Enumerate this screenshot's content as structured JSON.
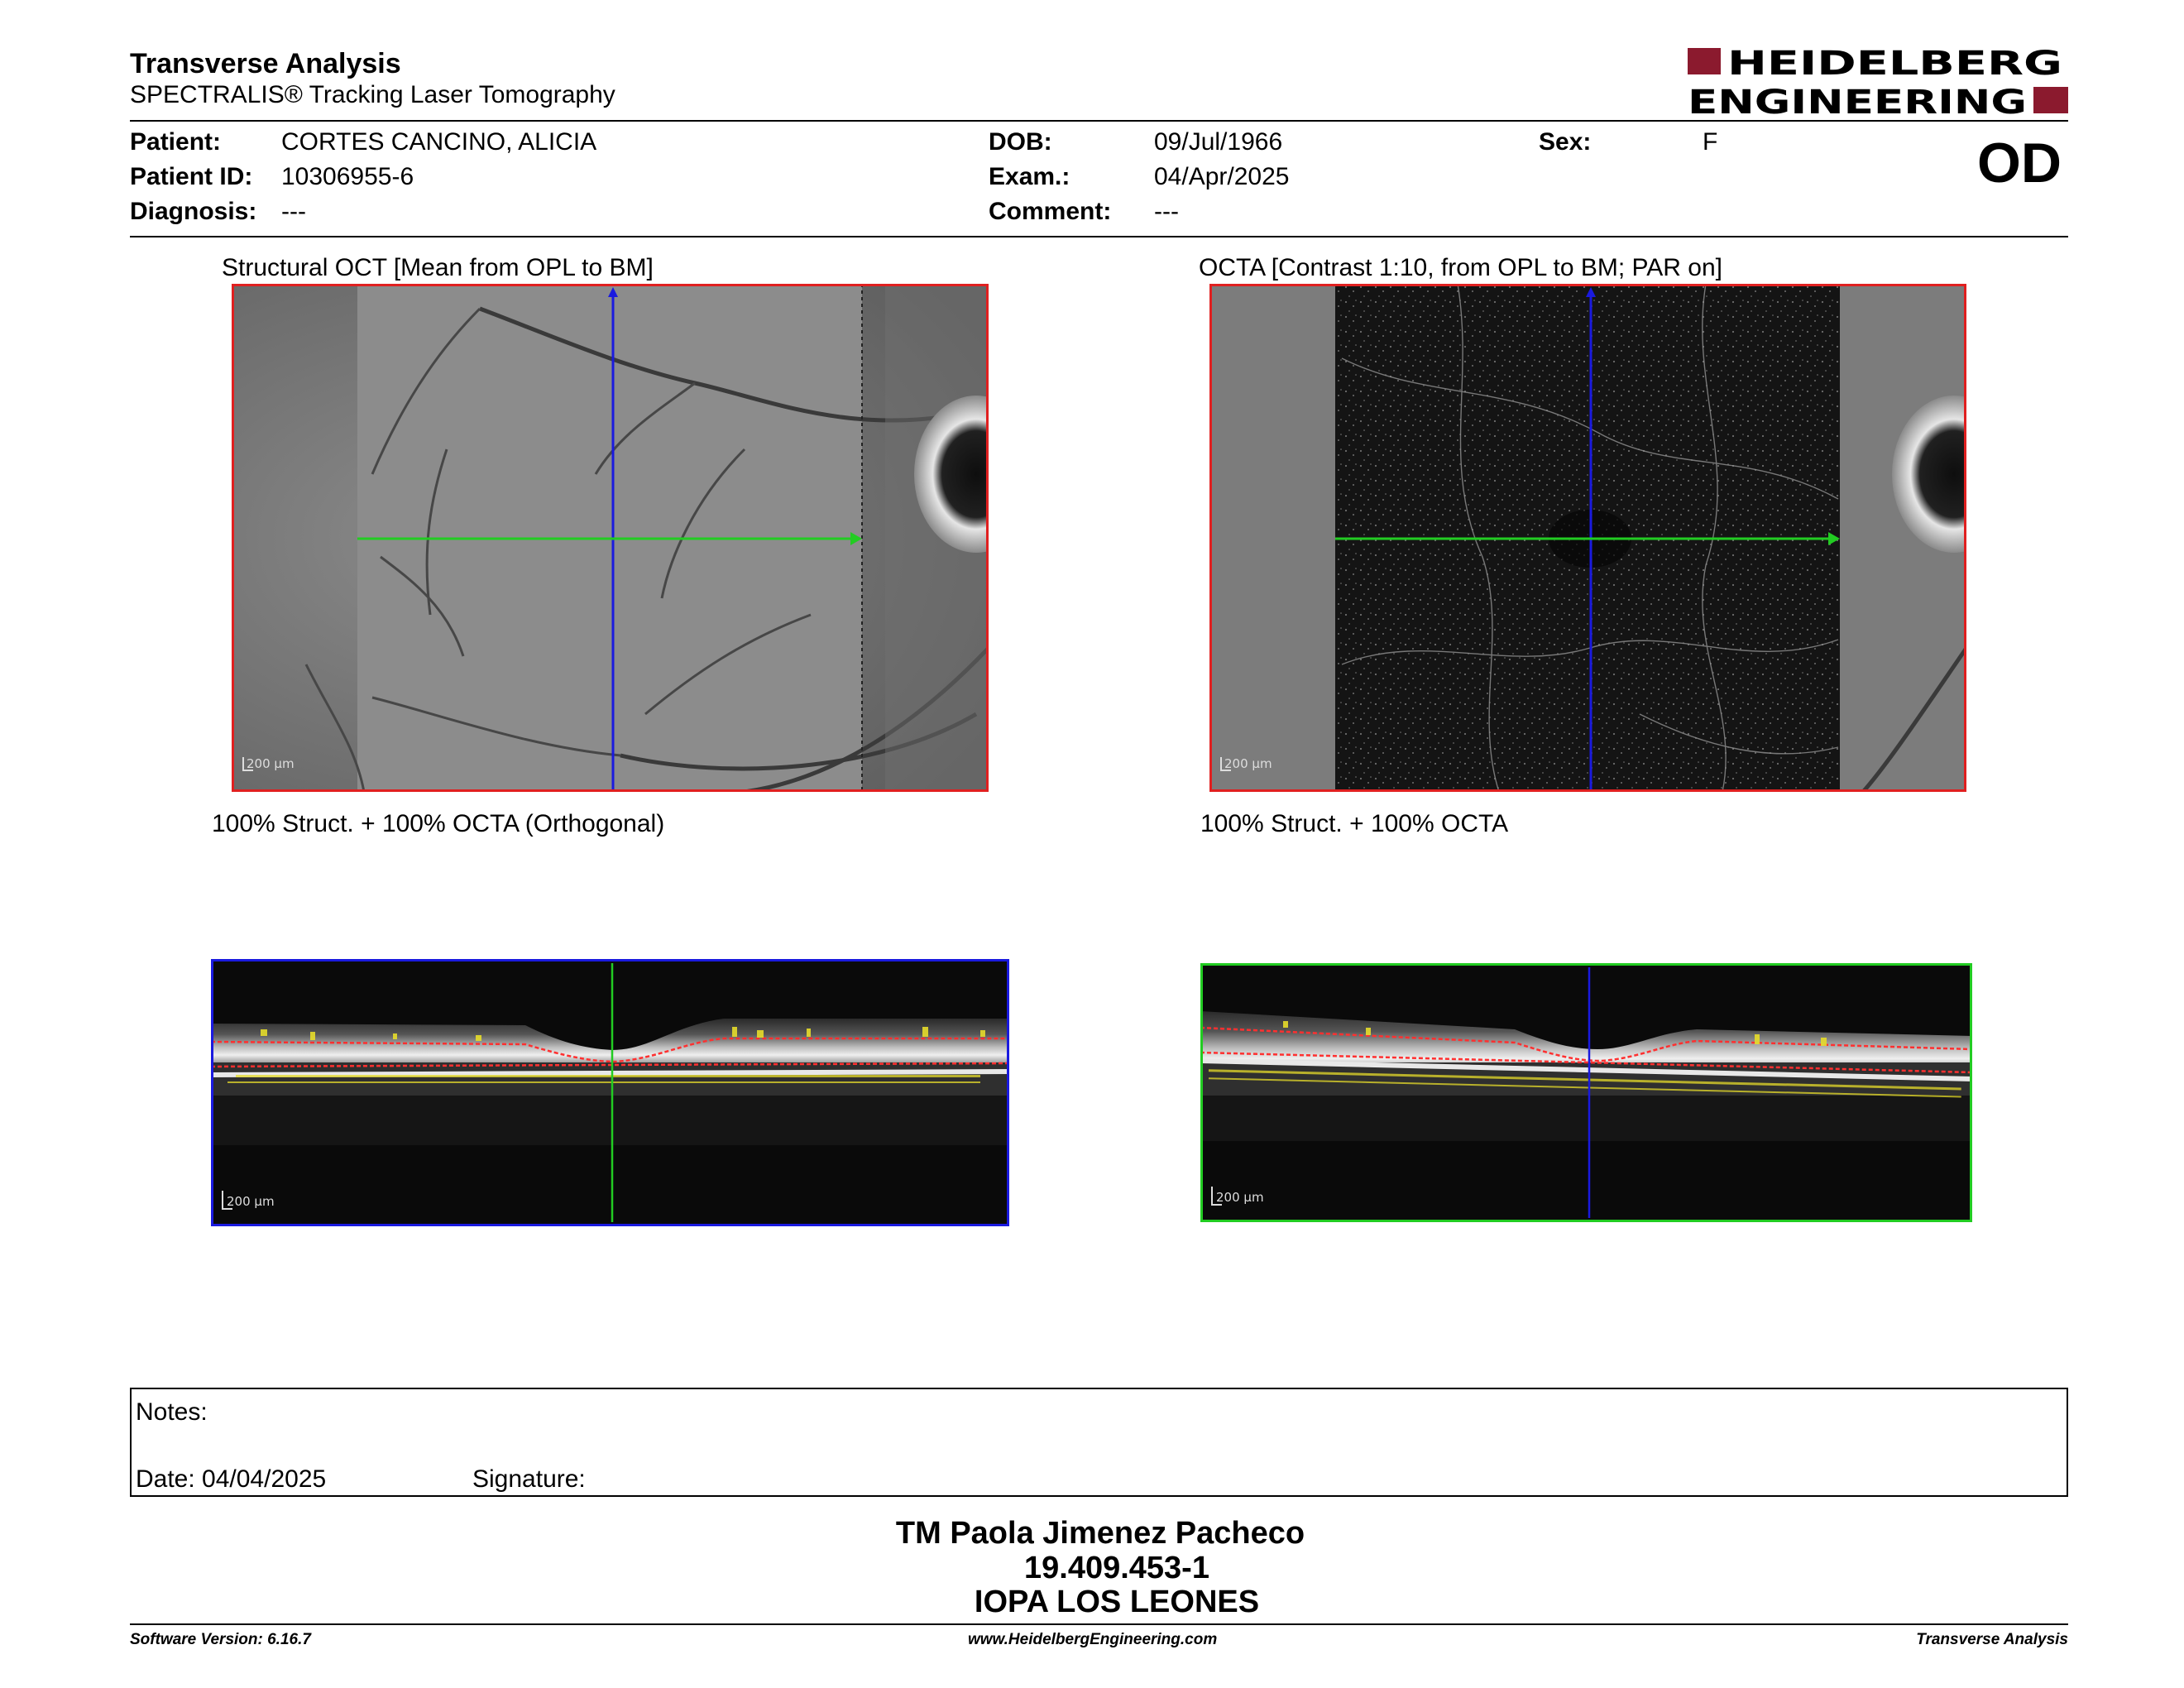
{
  "header": {
    "title": "Transverse Analysis",
    "subtitle": "SPECTRALIS® Tracking Laser Tomography",
    "logo_line1": "HEIDELBERG",
    "logo_line2": "ENGINEERING",
    "brand_color": "#8b1a2e"
  },
  "patient": {
    "patient_label": "Patient:",
    "patient_value": "CORTES CANCINO, ALICIA",
    "id_label": "Patient ID:",
    "id_value": "10306955-6",
    "diagnosis_label": "Diagnosis:",
    "diagnosis_value": "---",
    "dob_label": "DOB:",
    "dob_value": "09/Jul/1966",
    "exam_label": "Exam.:",
    "exam_value": "04/Apr/2025",
    "comment_label": "Comment:",
    "comment_value": "---",
    "sex_label": "Sex:",
    "sex_value": "F",
    "eye": "OD"
  },
  "images": {
    "structural_caption": "Structural OCT [Mean from OPL to BM]",
    "octa_caption": "OCTA [Contrast 1:10, from OPL to BM; PAR on]",
    "bscan_left_caption": "100% Struct. + 100% OCTA (Orthogonal)",
    "bscan_right_caption": "100% Struct. + 100% OCTA",
    "scale_label": "200 µm",
    "frame_red": "#e02020",
    "frame_blue": "#1a1adf",
    "frame_green": "#22cc22"
  },
  "notes": {
    "notes_label": "Notes:",
    "date_label": "Date: 04/04/2025",
    "signature_label": "Signature:"
  },
  "footer": {
    "operator_name": "TM Paola Jimenez Pacheco",
    "operator_id": "19.409.453-1",
    "institution": "IOPA LOS LEONES",
    "software_version": "Software Version: 6.16.7",
    "website": "www.HeidelbergEngineering.com",
    "report_type": "Transverse Analysis"
  }
}
